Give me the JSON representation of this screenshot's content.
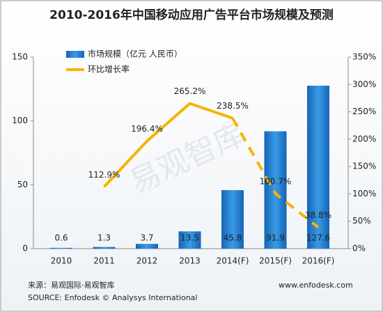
{
  "chart_data": {
    "type": "bar_line",
    "title": "2010-2016年中国移动应用广告平台市场规模及预测",
    "categories": [
      "2010",
      "2011",
      "2012",
      "2013",
      "2014(F)",
      "2015(F)",
      "2016(F)"
    ],
    "series": [
      {
        "name": "市场规模（亿元 人民币）",
        "color": "#1f78c8",
        "type": "bar",
        "values": [
          0.6,
          1.3,
          3.7,
          13.5,
          45.8,
          91.9,
          127.6
        ]
      },
      {
        "name": "环比增长率",
        "color": "#f5b400",
        "type": "line",
        "axis": "y2",
        "dashed_from": 4,
        "values": [
          null,
          112.9,
          196.4,
          265.2,
          238.5,
          100.7,
          38.8
        ],
        "value_labels": [
          null,
          "112.9%",
          "196.4%",
          "265.2%",
          "238.5%",
          "100.7%",
          "38.8%"
        ]
      }
    ],
    "ylim": [
      0,
      150
    ],
    "yticks": [
      0,
      50,
      100,
      150
    ],
    "y2lim": [
      0,
      350
    ],
    "y2ticks": [
      {
        "value": 0,
        "label": "0%"
      },
      {
        "value": 50,
        "label": "50%"
      },
      {
        "value": 100,
        "label": "100%"
      },
      {
        "value": 150,
        "label": "150%"
      },
      {
        "value": 200,
        "label": "200%"
      },
      {
        "value": 250,
        "label": "250%"
      },
      {
        "value": 300,
        "label": "300%"
      },
      {
        "value": 350,
        "label": "350%"
      }
    ],
    "watermark": "易观智库",
    "source_cn": "来源：易观国际·易观智库",
    "source_en": "SOURCE: Enfodesk © Analysys International",
    "website": "www.enfodesk.com"
  }
}
